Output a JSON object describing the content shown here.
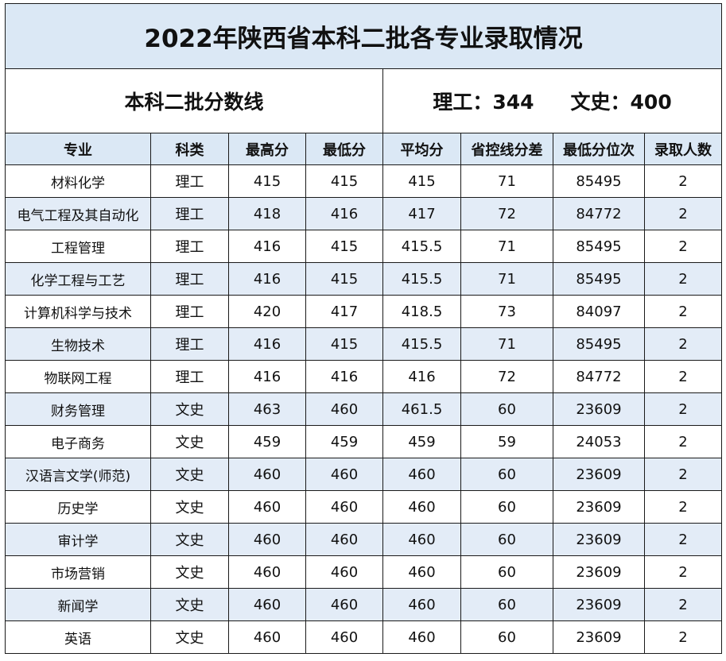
{
  "title": "2022年陕西省本科二批各专业录取情况",
  "subtitle": "本科二批分数线",
  "lines": {
    "science_label": "理工：",
    "science_value": "344",
    "arts_label": "文史：",
    "arts_value": "400"
  },
  "columns": [
    "专业",
    "科类",
    "最高分",
    "最低分",
    "平均分",
    "省控线分差",
    "最低分位次",
    "录取人数"
  ],
  "rows": [
    [
      "材料化学",
      "理工",
      "415",
      "415",
      "415",
      "71",
      "85495",
      "2"
    ],
    [
      "电气工程及其自动化",
      "理工",
      "418",
      "416",
      "417",
      "72",
      "84772",
      "2"
    ],
    [
      "工程管理",
      "理工",
      "416",
      "415",
      "415.5",
      "71",
      "85495",
      "2"
    ],
    [
      "化学工程与工艺",
      "理工",
      "416",
      "415",
      "415.5",
      "71",
      "85495",
      "2"
    ],
    [
      "计算机科学与技术",
      "理工",
      "420",
      "417",
      "418.5",
      "73",
      "84097",
      "2"
    ],
    [
      "生物技术",
      "理工",
      "416",
      "415",
      "415.5",
      "71",
      "85495",
      "2"
    ],
    [
      "物联网工程",
      "理工",
      "416",
      "416",
      "416",
      "72",
      "84772",
      "2"
    ],
    [
      "财务管理",
      "文史",
      "463",
      "460",
      "461.5",
      "60",
      "23609",
      "2"
    ],
    [
      "电子商务",
      "文史",
      "459",
      "459",
      "459",
      "59",
      "24053",
      "2"
    ],
    [
      "汉语言文学(师范)",
      "文史",
      "460",
      "460",
      "460",
      "60",
      "23609",
      "2"
    ],
    [
      "历史学",
      "文史",
      "460",
      "460",
      "460",
      "60",
      "23609",
      "2"
    ],
    [
      "审计学",
      "文史",
      "460",
      "460",
      "460",
      "60",
      "23609",
      "2"
    ],
    [
      "市场营销",
      "文史",
      "460",
      "460",
      "460",
      "60",
      "23609",
      "2"
    ],
    [
      "新闻学",
      "文史",
      "460",
      "460",
      "460",
      "60",
      "23609",
      "2"
    ],
    [
      "英语",
      "文史",
      "460",
      "460",
      "460",
      "60",
      "23609",
      "2"
    ]
  ]
}
